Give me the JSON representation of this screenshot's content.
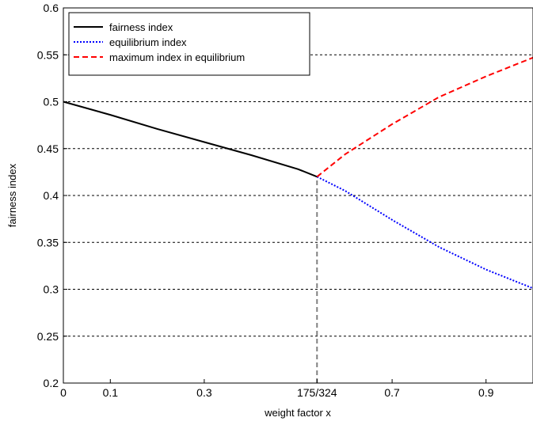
{
  "chart_data": {
    "type": "line",
    "title": "",
    "xlabel": "weight factor x",
    "ylabel": "fairness index",
    "xlim": [
      0,
      1
    ],
    "ylim": [
      0.2,
      0.6
    ],
    "grid": "horizontal dashed",
    "legend_position": "top-left",
    "x_ticks": [
      {
        "value": 0,
        "label": "0"
      },
      {
        "value": 0.1,
        "label": "0.1"
      },
      {
        "value": 0.3,
        "label": "0.3"
      },
      {
        "value": 0.5401,
        "label": "175/324"
      },
      {
        "value": 0.7,
        "label": "0.7"
      },
      {
        "value": 0.9,
        "label": "0.9"
      }
    ],
    "y_ticks": [
      {
        "value": 0.2,
        "label": "0.2"
      },
      {
        "value": 0.25,
        "label": "0.25"
      },
      {
        "value": 0.3,
        "label": "0.3"
      },
      {
        "value": 0.35,
        "label": "0.35"
      },
      {
        "value": 0.4,
        "label": "0.4"
      },
      {
        "value": 0.45,
        "label": "0.45"
      },
      {
        "value": 0.5,
        "label": "0.5"
      },
      {
        "value": 0.55,
        "label": "0.55"
      },
      {
        "value": 0.6,
        "label": "0.6"
      }
    ],
    "series": [
      {
        "name": "fairness index",
        "color": "#000000",
        "style": "solid",
        "x": [
          0,
          0.1,
          0.2,
          0.3,
          0.4,
          0.5,
          0.5401
        ],
        "y": [
          0.5,
          0.486,
          0.471,
          0.457,
          0.443,
          0.428,
          0.42
        ]
      },
      {
        "name": "equilibrium index",
        "color": "#0000ff",
        "style": "dotted",
        "x": [
          0.5401,
          0.6,
          0.7,
          0.8,
          0.9,
          1.0
        ],
        "y": [
          0.42,
          0.405,
          0.374,
          0.345,
          0.321,
          0.301
        ]
      },
      {
        "name": "maximum index in equilibrium",
        "color": "#ff0000",
        "style": "dashed",
        "x": [
          0.5401,
          0.6,
          0.7,
          0.8,
          0.9,
          1.0
        ],
        "y": [
          0.42,
          0.444,
          0.476,
          0.505,
          0.527,
          0.547
        ]
      }
    ],
    "annotations": [
      {
        "type": "vertical-line",
        "x": 0.5401,
        "y_from": 0.2,
        "y_to": 0.42,
        "color": "#808080",
        "style": "dashed"
      }
    ]
  }
}
